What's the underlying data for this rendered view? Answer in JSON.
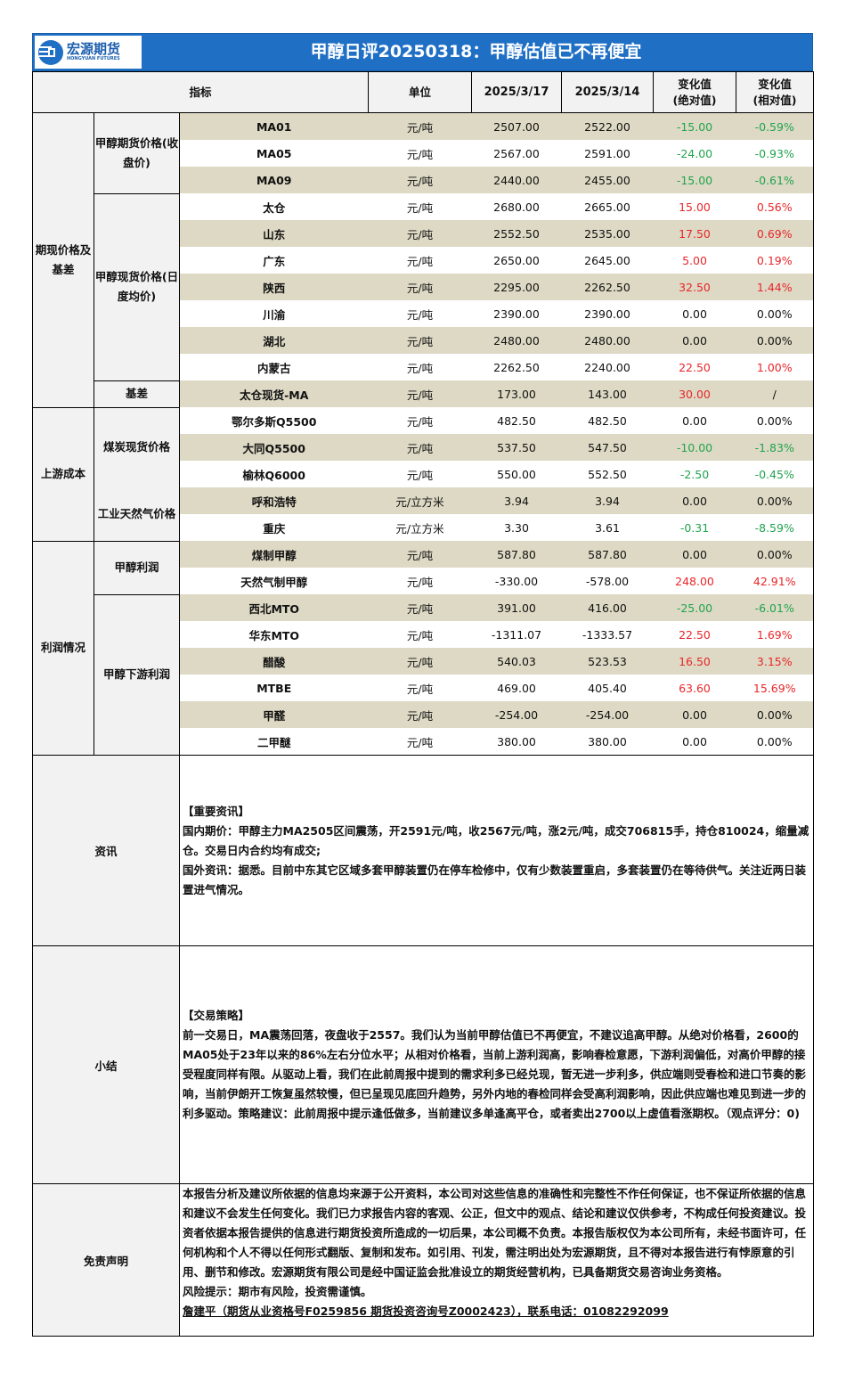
{
  "header": {
    "logo_cn": "宏源期货",
    "logo_en": "HONGYUAN FUTURES",
    "title": "甲醇日评20250318：甲醇估值已不再便宜",
    "brand_color": "#1f6fc5"
  },
  "columns": {
    "indicator": "指标",
    "unit": "单位",
    "date1": "2025/3/17",
    "date2": "2025/3/14",
    "abs_change_1": "变化值",
    "abs_change_2": "(绝对值)",
    "rel_change_1": "变化值",
    "rel_change_2": "(相对值)"
  },
  "colors": {
    "up": "#e8262a",
    "down": "#22a34f",
    "row_shade": "#ddd9c4"
  },
  "categories": [
    {
      "label": "期现价格及基差",
      "subgroups": [
        {
          "label": "甲醇期货价格(收盘价)",
          "rows": [
            {
              "name": "MA01",
              "unit": "元/吨",
              "d1": "2507.00",
              "d2": "2522.00",
              "abs": "-15.00",
              "rel": "-0.59%",
              "dir": "down"
            },
            {
              "name": "MA05",
              "unit": "元/吨",
              "d1": "2567.00",
              "d2": "2591.00",
              "abs": "-24.00",
              "rel": "-0.93%",
              "dir": "down"
            },
            {
              "name": "MA09",
              "unit": "元/吨",
              "d1": "2440.00",
              "d2": "2455.00",
              "abs": "-15.00",
              "rel": "-0.61%",
              "dir": "down"
            }
          ]
        },
        {
          "label": "甲醇现货价格(日度均价)",
          "rows": [
            {
              "name": "太仓",
              "unit": "元/吨",
              "d1": "2680.00",
              "d2": "2665.00",
              "abs": "15.00",
              "rel": "0.56%",
              "dir": "up"
            },
            {
              "name": "山东",
              "unit": "元/吨",
              "d1": "2552.50",
              "d2": "2535.00",
              "abs": "17.50",
              "rel": "0.69%",
              "dir": "up"
            },
            {
              "name": "广东",
              "unit": "元/吨",
              "d1": "2650.00",
              "d2": "2645.00",
              "abs": "5.00",
              "rel": "0.19%",
              "dir": "up"
            },
            {
              "name": "陕西",
              "unit": "元/吨",
              "d1": "2295.00",
              "d2": "2262.50",
              "abs": "32.50",
              "rel": "1.44%",
              "dir": "up"
            },
            {
              "name": "川渝",
              "unit": "元/吨",
              "d1": "2390.00",
              "d2": "2390.00",
              "abs": "0.00",
              "rel": "0.00%",
              "dir": "flat"
            },
            {
              "name": "湖北",
              "unit": "元/吨",
              "d1": "2480.00",
              "d2": "2480.00",
              "abs": "0.00",
              "rel": "0.00%",
              "dir": "flat"
            },
            {
              "name": "内蒙古",
              "unit": "元/吨",
              "d1": "2262.50",
              "d2": "2240.00",
              "abs": "22.50",
              "rel": "1.00%",
              "dir": "up"
            }
          ]
        },
        {
          "label": "基差",
          "rows": [
            {
              "name": "太仓现货-MA",
              "unit": "元/吨",
              "d1": "173.00",
              "d2": "143.00",
              "abs": "30.00",
              "rel": "/",
              "dir": "up",
              "rel_dir": "flat"
            }
          ]
        }
      ]
    },
    {
      "label": "上游成本",
      "subgroups": [
        {
          "label": "煤炭现货价格",
          "rows": [
            {
              "name": "鄂尔多斯Q5500",
              "unit": "元/吨",
              "d1": "482.50",
              "d2": "482.50",
              "abs": "0.00",
              "rel": "0.00%",
              "dir": "flat"
            },
            {
              "name": "大同Q5500",
              "unit": "元/吨",
              "d1": "537.50",
              "d2": "547.50",
              "abs": "-10.00",
              "rel": "-1.83%",
              "dir": "down"
            },
            {
              "name": "榆林Q6000",
              "unit": "元/吨",
              "d1": "550.00",
              "d2": "552.50",
              "abs": "-2.50",
              "rel": "-0.45%",
              "dir": "down"
            }
          ]
        },
        {
          "label": "工业天然气价格",
          "rows": [
            {
              "name": "呼和浩特",
              "unit": "元/立方米",
              "d1": "3.94",
              "d2": "3.94",
              "abs": "0.00",
              "rel": "0.00%",
              "dir": "flat"
            },
            {
              "name": "重庆",
              "unit": "元/立方米",
              "d1": "3.30",
              "d2": "3.61",
              "abs": "-0.31",
              "rel": "-8.59%",
              "dir": "down"
            }
          ]
        }
      ]
    },
    {
      "label": "利润情况",
      "subgroups": [
        {
          "label": "甲醇利润",
          "rows": [
            {
              "name": "煤制甲醇",
              "unit": "元/吨",
              "d1": "587.80",
              "d2": "587.80",
              "abs": "0.00",
              "rel": "0.00%",
              "dir": "flat"
            },
            {
              "name": "天然气制甲醇",
              "unit": "元/吨",
              "d1": "-330.00",
              "d2": "-578.00",
              "abs": "248.00",
              "rel": "42.91%",
              "dir": "up"
            }
          ]
        },
        {
          "label": "甲醇下游利润",
          "rows": [
            {
              "name": "西北MTO",
              "unit": "元/吨",
              "d1": "391.00",
              "d2": "416.00",
              "abs": "-25.00",
              "rel": "-6.01%",
              "dir": "down"
            },
            {
              "name": "华东MTO",
              "unit": "元/吨",
              "d1": "-1311.07",
              "d2": "-1333.57",
              "abs": "22.50",
              "rel": "1.69%",
              "dir": "up"
            },
            {
              "name": "醋酸",
              "unit": "元/吨",
              "d1": "540.03",
              "d2": "523.53",
              "abs": "16.50",
              "rel": "3.15%",
              "dir": "up"
            },
            {
              "name": "MTBE",
              "unit": "元/吨",
              "d1": "469.00",
              "d2": "405.40",
              "abs": "63.60",
              "rel": "15.69%",
              "dir": "up"
            },
            {
              "name": "甲醛",
              "unit": "元/吨",
              "d1": "-254.00",
              "d2": "-254.00",
              "abs": "0.00",
              "rel": "0.00%",
              "dir": "flat"
            },
            {
              "name": "二甲醚",
              "unit": "元/吨",
              "d1": "380.00",
              "d2": "380.00",
              "abs": "0.00",
              "rel": "0.00%",
              "dir": "flat"
            }
          ]
        }
      ]
    }
  ],
  "news": {
    "label": "资讯",
    "heading": "【重要资讯】",
    "lines": [
      "国内期价：甲醇主力MA2505区间震荡，开2591元/吨，收2567元/吨，涨2元/吨，成交706815手，持仓810024，缩量减仓。交易日内合约均有成交;",
      "国外资讯：据悉。目前中东其它区域多套甲醇装置仍在停车检修中，仅有少数装置重启，多套装置仍在等待供气。关注近两日装置进气情况。"
    ]
  },
  "summary": {
    "label": "小结",
    "heading": "【交易策略】",
    "text": "前一交易日，MA震荡回落，夜盘收于2557。我们认为当前甲醇估值已不再便宜，不建议追高甲醇。从绝对价格看，2600的MA05处于23年以来的86%左右分位水平；从相对价格看，当前上游利润高，影响春检意愿，下游利润偏低，对高价甲醇的接受程度同样有限。从驱动上看，我们在此前周报中提到的需求利多已经兑现，暂无进一步利多，供应端则受春检和进口节奏的影响，当前伊朗开工恢复虽然较慢，但已呈现见底回升趋势，另外内地的春检同样会受高利润影响，因此供应端也难见到进一步的利多驱动。策略建议：此前周报中提示逢低做多，当前建议多单逢高平仓，或者卖出2700以上虚值看涨期权。（观点评分：0)"
  },
  "disclaimer": {
    "label": "免责声明",
    "text": "本报告分析及建议所依据的信息均来源于公开资料，本公司对这些信息的准确性和完整性不作任何保证，也不保证所依据的信息和建议不会发生任何变化。我们已力求报告内容的客观、公正，但文中的观点、结论和建议仅供参考，不构成任何投资建议。投资者依据本报告提供的信息进行期货投资所造成的一切后果，本公司概不负责。本报告版权仅为本公司所有，未经书面许可，任何机构和个人不得以任何形式翻版、复制和发布。如引用、刊发，需注明出处为宏源期货，且不得对本报告进行有悖原意的引用、删节和修改。宏源期货有限公司是经中国证监会批准设立的期货经营机构，已具备期货交易咨询业务资格。",
    "risk": "风险提示：期市有风险，投资需谨慎。",
    "contact": "詹建平（期货从业资格号F0259856  期货投资咨询号Z0002423），联系电话：01082292099"
  }
}
